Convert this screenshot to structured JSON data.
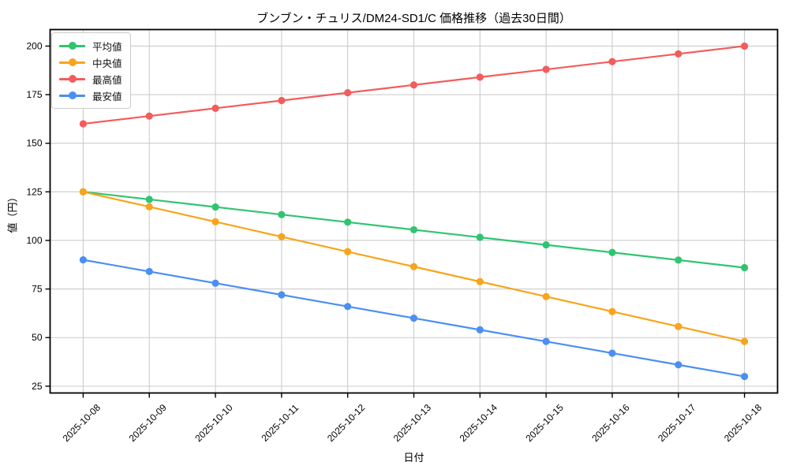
{
  "figure": {
    "background": "#ffffff"
  },
  "chart_data": {
    "type": "line",
    "title": "ブンブン・チュリス/DM24-SD1/C 価格推移（過去30日間）",
    "xlabel": "日付",
    "ylabel": "値（円）",
    "categories": [
      "2025-10-08",
      "2025-10-09",
      "2025-10-10",
      "2025-10-11",
      "2025-10-12",
      "2025-10-13",
      "2025-10-14",
      "2025-10-15",
      "2025-10-16",
      "2025-10-17",
      "2025-10-18"
    ],
    "series": [
      {
        "id": "average",
        "name": "平均値",
        "color": "#2fc56f",
        "values": [
          125.0,
          121.1,
          117.2,
          113.3,
          109.4,
          105.5,
          101.6,
          97.7,
          93.8,
          89.9,
          86.0
        ]
      },
      {
        "id": "median",
        "name": "中央値",
        "color": "#f8a41c",
        "values": [
          125.0,
          117.3,
          109.6,
          101.9,
          94.2,
          86.5,
          78.8,
          71.1,
          63.4,
          55.7,
          48.0
        ]
      },
      {
        "id": "max",
        "name": "最高値",
        "color": "#f35c5c",
        "values": [
          160,
          164,
          168,
          172,
          176,
          180,
          184,
          188,
          192,
          196,
          200
        ]
      },
      {
        "id": "min",
        "name": "最安値",
        "color": "#4b8ff2",
        "values": [
          90,
          84,
          78,
          72,
          66,
          60,
          54,
          48,
          42,
          36,
          30
        ]
      }
    ],
    "y_ticks": [
      25,
      50,
      75,
      100,
      125,
      150,
      175,
      200
    ],
    "ylim": [
      21.5,
      208.5
    ],
    "grid": true,
    "grid_color": "#cccccc",
    "axis_color": "#000000",
    "legend_position": "upper-left"
  }
}
